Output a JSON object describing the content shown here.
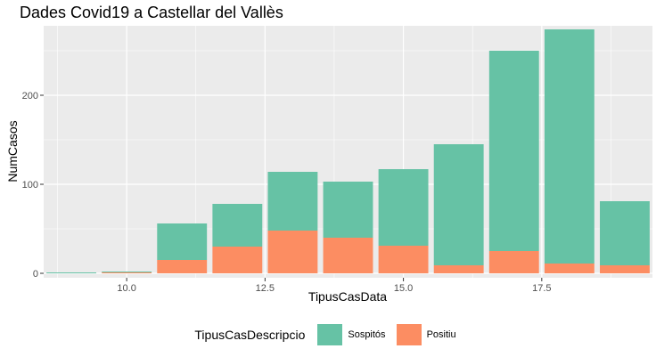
{
  "chart_data": {
    "type": "bar",
    "stacked": true,
    "title": "Dades Covid19 a Castellar del Vallès",
    "xlabel": "TipusCasData",
    "ylabel": "NumCasos",
    "xlim": [
      8.5,
      19.5
    ],
    "ylim": [
      -5,
      278
    ],
    "x_ticks": [
      10.0,
      12.5,
      15.0,
      17.5
    ],
    "x_tick_labels": [
      "10.0",
      "12.5",
      "15.0",
      "17.5"
    ],
    "y_ticks": [
      0,
      100,
      200
    ],
    "y_tick_labels": [
      "0",
      "100",
      "200"
    ],
    "x": [
      9,
      10,
      11,
      12,
      13,
      14,
      15,
      16,
      17,
      18,
      19
    ],
    "series": [
      {
        "name": "Positiu",
        "color": "#FC8D62",
        "values": [
          0,
          1,
          15,
          30,
          48,
          40,
          31,
          9,
          25,
          11,
          9
        ]
      },
      {
        "name": "Sospitós",
        "color": "#66C2A5",
        "values": [
          1,
          1,
          41,
          48,
          66,
          63,
          86,
          136,
          225,
          263,
          72
        ]
      }
    ],
    "grid": true,
    "legend": {
      "title": "TipusCasDescripcio",
      "position": "bottom",
      "items": [
        "Sospitós",
        "Positiu"
      ]
    }
  }
}
